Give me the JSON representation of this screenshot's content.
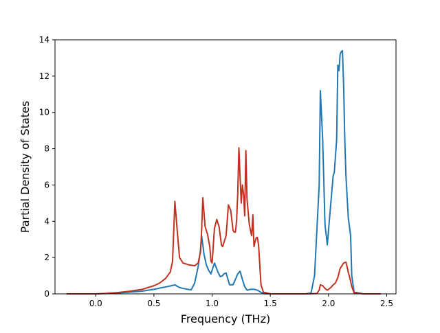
{
  "chart_data": {
    "type": "line",
    "title": "",
    "xlabel": "Frequency (THz)",
    "ylabel": "Partial Density of States",
    "xlim": [
      -0.35,
      2.58
    ],
    "ylim": [
      0,
      14
    ],
    "xticks": [
      0.0,
      0.5,
      1.0,
      1.5,
      2.0,
      2.5
    ],
    "xtick_labels": [
      "0.0",
      "0.5",
      "1.0",
      "1.5",
      "2.0",
      "2.5"
    ],
    "yticks": [
      0,
      2,
      4,
      6,
      8,
      10,
      12,
      14
    ],
    "ytick_labels": [
      "0",
      "2",
      "4",
      "6",
      "8",
      "10",
      "12",
      "14"
    ],
    "grid": false,
    "legend": "none",
    "series": [
      {
        "color": "#1f77b4",
        "x": [
          -0.25,
          0.0,
          0.1,
          0.2,
          0.3,
          0.4,
          0.5,
          0.55,
          0.6,
          0.65,
          0.68,
          0.7,
          0.72,
          0.75,
          0.8,
          0.82,
          0.85,
          0.88,
          0.9,
          0.91,
          0.93,
          0.95,
          0.97,
          0.99,
          1.0,
          1.02,
          1.05,
          1.07,
          1.09,
          1.1,
          1.12,
          1.15,
          1.18,
          1.2,
          1.22,
          1.24,
          1.26,
          1.28,
          1.3,
          1.33,
          1.36,
          1.39,
          1.41,
          1.43,
          1.45,
          1.5,
          1.6,
          1.7,
          1.8,
          1.85,
          1.88,
          1.9,
          1.92,
          1.93,
          1.95,
          1.97,
          1.99,
          2.0,
          2.02,
          2.04,
          2.05,
          2.07,
          2.08,
          2.09,
          2.1,
          2.11,
          2.12,
          2.13,
          2.14,
          2.15,
          2.17,
          2.19,
          2.2,
          2.22,
          2.3,
          2.45
        ],
        "y": [
          0,
          0,
          0.02,
          0.05,
          0.1,
          0.15,
          0.25,
          0.32,
          0.38,
          0.45,
          0.5,
          0.42,
          0.35,
          0.3,
          0.24,
          0.22,
          0.6,
          1.5,
          2.4,
          3.2,
          2.2,
          1.6,
          1.3,
          1.1,
          1.3,
          1.7,
          1.2,
          0.95,
          1.0,
          1.1,
          1.15,
          0.5,
          0.5,
          0.8,
          1.1,
          1.25,
          0.8,
          0.4,
          0.2,
          0.25,
          0.25,
          0.2,
          0.12,
          0.05,
          0.01,
          0,
          0,
          0,
          0,
          0.05,
          1.0,
          3.5,
          6.0,
          11.2,
          8.5,
          3.8,
          2.7,
          3.5,
          5.0,
          6.5,
          6.7,
          8.5,
          12.6,
          12.3,
          13.2,
          13.35,
          13.4,
          11.5,
          8.5,
          6.5,
          4.2,
          3.2,
          1.0,
          0.1,
          0,
          0
        ]
      },
      {
        "color": "#c1311f",
        "x": [
          -0.25,
          0.0,
          0.1,
          0.2,
          0.3,
          0.4,
          0.5,
          0.55,
          0.6,
          0.64,
          0.66,
          0.68,
          0.7,
          0.72,
          0.75,
          0.8,
          0.85,
          0.88,
          0.9,
          0.91,
          0.92,
          0.94,
          0.96,
          0.98,
          0.99,
          1.0,
          1.02,
          1.04,
          1.06,
          1.08,
          1.09,
          1.1,
          1.12,
          1.14,
          1.16,
          1.18,
          1.19,
          1.2,
          1.21,
          1.22,
          1.23,
          1.24,
          1.25,
          1.26,
          1.27,
          1.28,
          1.29,
          1.3,
          1.32,
          1.34,
          1.35,
          1.36,
          1.37,
          1.38,
          1.39,
          1.4,
          1.42,
          1.44,
          1.5,
          1.7,
          1.8,
          1.9,
          1.92,
          1.93,
          1.95,
          1.97,
          1.99,
          2.0,
          2.02,
          2.04,
          2.06,
          2.08,
          2.1,
          2.12,
          2.13,
          2.15,
          2.17,
          2.19,
          2.2,
          2.22,
          2.3,
          2.45
        ],
        "y": [
          0,
          0,
          0.03,
          0.08,
          0.15,
          0.25,
          0.45,
          0.6,
          0.85,
          1.2,
          1.8,
          5.1,
          3.5,
          2.0,
          1.7,
          1.6,
          1.55,
          1.7,
          2.3,
          3.5,
          5.3,
          3.7,
          3.3,
          2.6,
          1.8,
          1.7,
          3.6,
          4.1,
          3.7,
          2.7,
          2.6,
          2.8,
          3.2,
          4.9,
          4.6,
          3.5,
          3.4,
          3.4,
          4.0,
          5.5,
          8.05,
          6.5,
          5.0,
          6.0,
          5.5,
          4.3,
          7.9,
          5.2,
          3.8,
          3.2,
          4.35,
          2.6,
          2.9,
          3.1,
          3.1,
          2.6,
          0.5,
          0.1,
          0,
          0,
          0,
          0.02,
          0.2,
          0.5,
          0.45,
          0.3,
          0.2,
          0.25,
          0.35,
          0.5,
          0.6,
          0.9,
          1.4,
          1.6,
          1.7,
          1.75,
          1.2,
          0.7,
          0.4,
          0.05,
          0,
          0
        ]
      }
    ]
  }
}
